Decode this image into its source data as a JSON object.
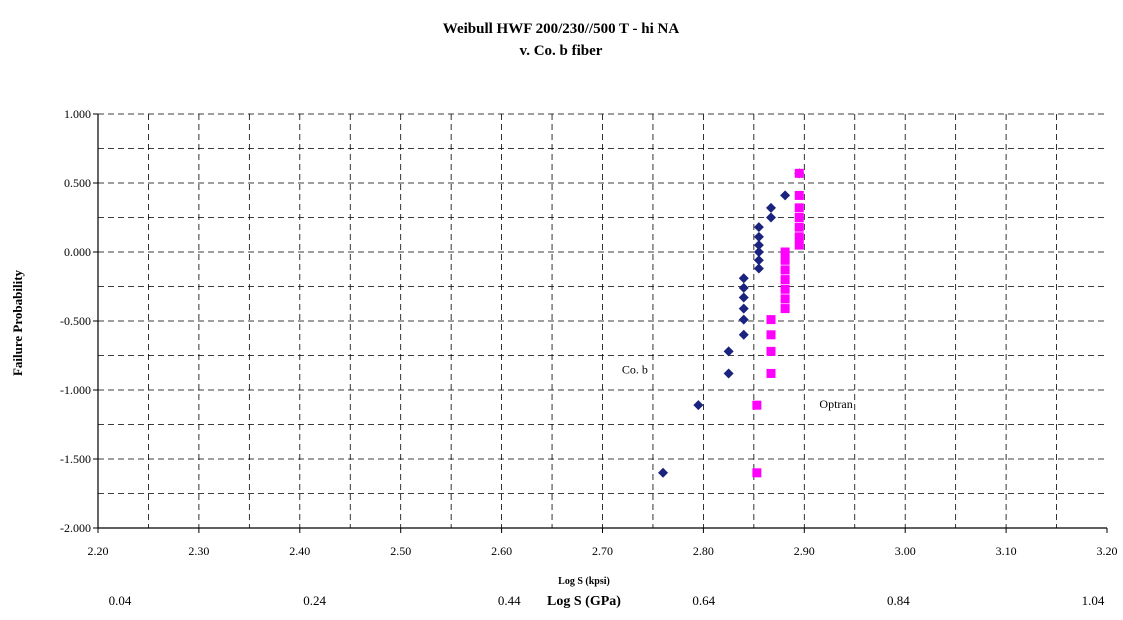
{
  "chart_data": {
    "type": "scatter",
    "title_line1": "Weibull HWF 200/230//500 T - hi NA",
    "title_line2": "v. Co. b fiber",
    "xlabel": "Log S (kpsi)",
    "ylabel": "Failure Probability",
    "xlim": [
      2.2,
      3.2
    ],
    "ylim": [
      -2.0,
      1.0
    ],
    "x_ticks": [
      "2.20",
      "2.30",
      "2.40",
      "2.50",
      "2.60",
      "2.70",
      "2.80",
      "2.90",
      "3.00",
      "3.10",
      "3.20"
    ],
    "y_ticks": [
      "1.000",
      "0.500",
      "0.000",
      "-0.500",
      "-1.000",
      "-1.500",
      "-2.000"
    ],
    "grid": true,
    "secondary_x": {
      "label": "Log S (GPa)",
      "ticks": [
        "0.04",
        "0.24",
        "0.44",
        "0.64",
        "0.84",
        "1.04"
      ]
    },
    "series": [
      {
        "marker": "diamond",
        "color": "#1a237e",
        "points": [
          [
            2.76,
            -1.6
          ],
          [
            2.795,
            -1.11
          ],
          [
            2.825,
            -0.88
          ],
          [
            2.825,
            -0.72
          ],
          [
            2.84,
            -0.6
          ],
          [
            2.84,
            -0.49
          ],
          [
            2.84,
            -0.41
          ],
          [
            2.84,
            -0.33
          ],
          [
            2.84,
            -0.26
          ],
          [
            2.84,
            -0.19
          ],
          [
            2.855,
            -0.12
          ],
          [
            2.855,
            -0.06
          ],
          [
            2.855,
            0.0
          ],
          [
            2.855,
            0.05
          ],
          [
            2.855,
            0.11
          ],
          [
            2.855,
            0.18
          ],
          [
            2.867,
            0.25
          ],
          [
            2.867,
            0.32
          ],
          [
            2.881,
            0.41
          ],
          [
            2.895,
            0.57
          ]
        ]
      },
      {
        "marker": "square",
        "color": "#ff00ff",
        "points": [
          [
            2.853,
            -1.6
          ],
          [
            2.853,
            -1.11
          ],
          [
            2.867,
            -0.88
          ],
          [
            2.867,
            -0.72
          ],
          [
            2.867,
            -0.6
          ],
          [
            2.867,
            -0.49
          ],
          [
            2.881,
            -0.41
          ],
          [
            2.881,
            -0.34
          ],
          [
            2.881,
            -0.27
          ],
          [
            2.881,
            -0.2
          ],
          [
            2.881,
            -0.13
          ],
          [
            2.881,
            -0.06
          ],
          [
            2.881,
            0.0
          ],
          [
            2.895,
            0.05
          ],
          [
            2.895,
            0.11
          ],
          [
            2.895,
            0.18
          ],
          [
            2.895,
            0.25
          ],
          [
            2.895,
            0.32
          ],
          [
            2.895,
            0.41
          ],
          [
            2.895,
            0.57
          ]
        ]
      }
    ],
    "annotations": [
      {
        "text": "Co. b",
        "x": 2.745,
        "y": -0.88
      },
      {
        "text": "Optran",
        "x": 2.915,
        "y": -1.13
      }
    ]
  }
}
